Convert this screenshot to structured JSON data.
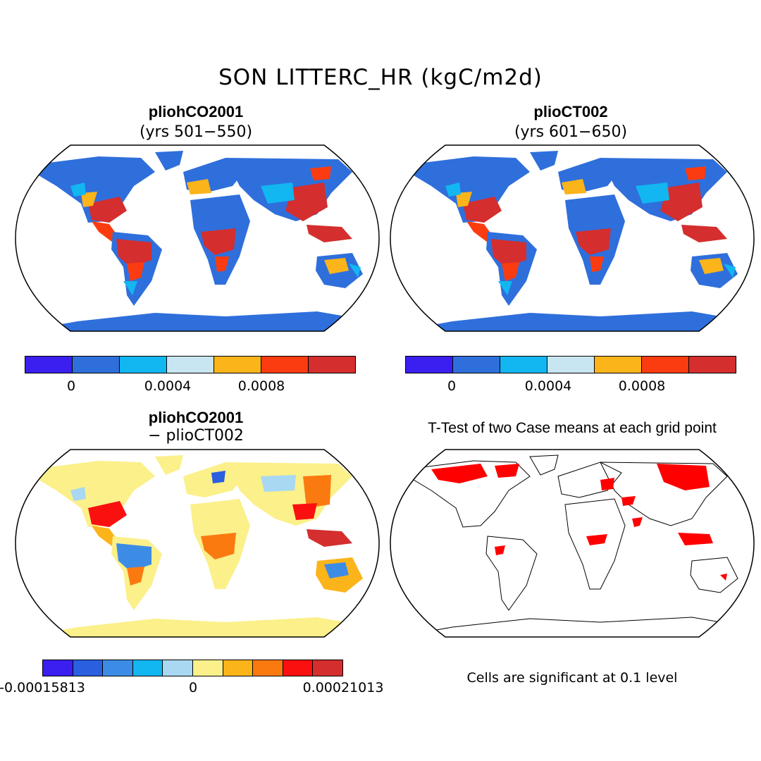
{
  "figure_title": "SON LITTERC_HR (kgC/m2d)",
  "panels": [
    {
      "title": "pliohCO2001",
      "subtitle": "(yrs 501−550)",
      "kind": "field"
    },
    {
      "title": "plioCT002",
      "subtitle": "(yrs 601−650)",
      "kind": "field"
    },
    {
      "title": "pliohCO2001",
      "subtitle": "− plioCT002",
      "kind": "difference"
    },
    {
      "title": "T-Test of two Case means at each grid point",
      "subtitle": "",
      "kind": "significance"
    }
  ],
  "colorbar_field": {
    "colors": [
      "#3a1ff0",
      "#2f6fdc",
      "#12b6f0",
      "#c8e6f2",
      "#fbb41a",
      "#fb3c10",
      "#d42e2e"
    ],
    "ticks": [
      "0",
      "0.0004",
      "0.0008"
    ]
  },
  "colorbar_diff": {
    "colors": [
      "#3a1ff0",
      "#2a5fe0",
      "#3c8ce6",
      "#12b6f0",
      "#a8d8f2",
      "#fbf08a",
      "#fbb41a",
      "#fb7a10",
      "#fb1010",
      "#d42e2e"
    ],
    "ticks": [
      "-0.00015813",
      "0",
      "0.00021013"
    ]
  },
  "significance_note": "Cells are significant at 0.1 level",
  "significance_color": "#ff0000",
  "ocean_color": "#ffffff"
}
